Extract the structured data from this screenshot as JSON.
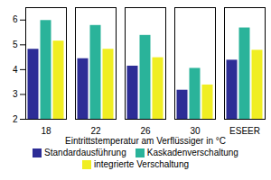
{
  "chart_data": {
    "type": "bar",
    "x_label": "Eintrittstemperatur am Verflüssiger in °C",
    "categories": [
      "18",
      "22",
      "26",
      "30",
      "ESEER"
    ],
    "series": [
      {
        "name": "Standardausführung",
        "color": "#2d2d96",
        "values": [
          4.84,
          4.46,
          4.16,
          3.19,
          4.4
        ]
      },
      {
        "name": "Kaskadenverschaltung",
        "color": "#2ab39a",
        "values": [
          6.0,
          5.8,
          5.4,
          4.07,
          5.7
        ]
      },
      {
        "name": "integrierte Verschaltung",
        "color": "#f0ee22",
        "values": [
          5.17,
          4.84,
          4.5,
          3.4,
          4.8
        ]
      }
    ],
    "ylim": [
      2,
      6.5
    ],
    "yticks": [
      2,
      3,
      4,
      5,
      6
    ],
    "grid": false,
    "legend": "bottom"
  }
}
